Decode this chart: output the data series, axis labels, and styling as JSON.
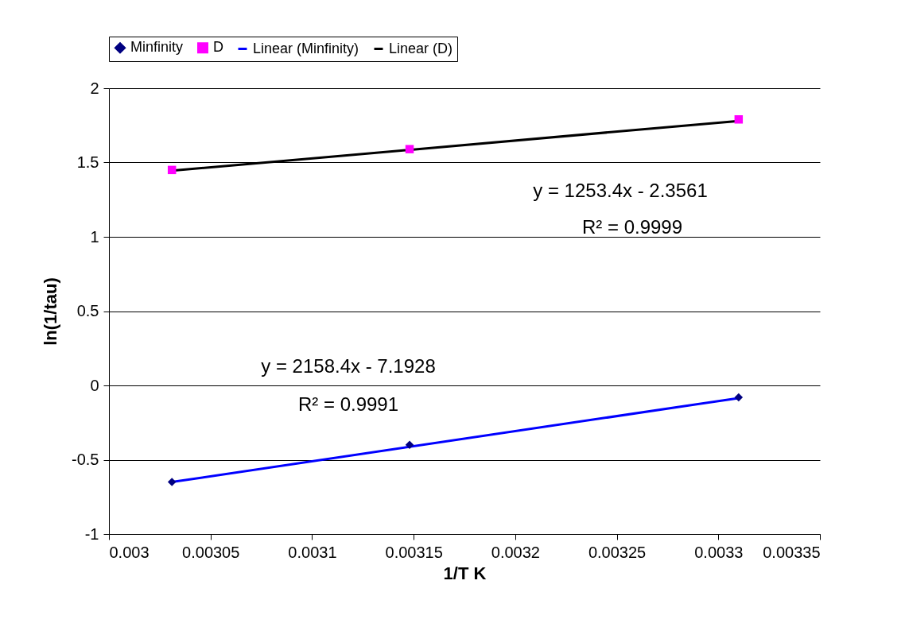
{
  "chart_data": {
    "type": "scatter",
    "xlabel": "1/T K",
    "ylabel": "ln(1/tau)",
    "xlim": [
      0.003,
      0.00335
    ],
    "xticks": [
      0.003,
      0.00305,
      0.0031,
      0.00315,
      0.0032,
      0.00325,
      0.0033,
      0.00335
    ],
    "ylim": [
      -1,
      2
    ],
    "yticks": [
      -1,
      -0.5,
      0,
      0.5,
      1,
      1.5,
      2
    ],
    "grid": "y",
    "legend": "top",
    "line_style": "solid",
    "series": [
      {
        "name": "Minfinity",
        "marker": "diamond",
        "color": "#000080",
        "x": [
          0.003031,
          0.003148,
          0.00331
        ],
        "values": [
          -0.65,
          -0.4,
          -0.08
        ]
      },
      {
        "name": "D",
        "marker": "square",
        "color": "#ff00ff",
        "x": [
          0.003031,
          0.003148,
          0.00331
        ],
        "values": [
          1.45,
          1.59,
          1.79
        ]
      },
      {
        "name": "Linear (Minfinity)",
        "type": "line",
        "color": "#0000ff",
        "x": [
          0.003031,
          0.00331
        ],
        "values": [
          -0.65,
          -0.085
        ]
      },
      {
        "name": "Linear (D)",
        "type": "line",
        "color": "#000000",
        "x": [
          0.003031,
          0.00331
        ],
        "values": [
          1.445,
          1.78
        ]
      }
    ],
    "annotations": [
      "y = 1253.4x - 2.3561",
      "R² = 0.9999",
      "y = 2158.4x - 7.1928",
      "R² = 0.9991"
    ]
  }
}
